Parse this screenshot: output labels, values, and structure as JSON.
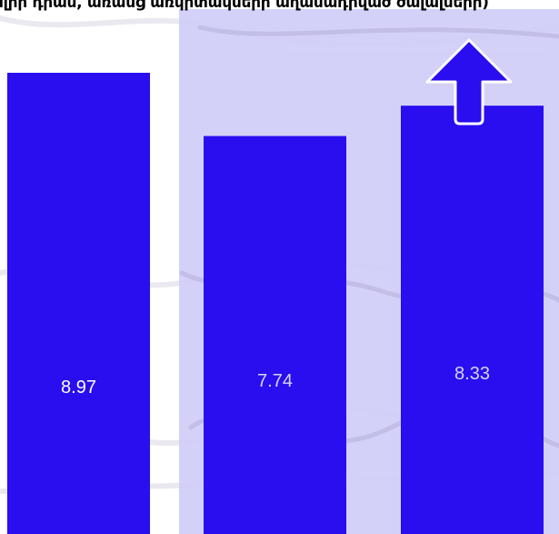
{
  "chart_data": {
    "type": "bar",
    "title": "ալիր դրամ, առանց առկիտակների աղամադրված ծալալների)",
    "categories": [
      "",
      "",
      ""
    ],
    "values": [
      8.97,
      7.74,
      8.33
    ],
    "value_labels": [
      "8.97",
      "7.74",
      "8.33"
    ],
    "ylim": [
      0,
      9.5
    ],
    "grid": false,
    "legend": "none",
    "highlight_index": 2,
    "annotation": "up-arrow-icon above the last bar",
    "colors": {
      "bar": "#2a0ef0",
      "highlight_band": "#d2cff8",
      "label_text": "#ffffff",
      "arrow_fill": "#2a0ef0",
      "arrow_stroke": "#ffffff"
    }
  }
}
